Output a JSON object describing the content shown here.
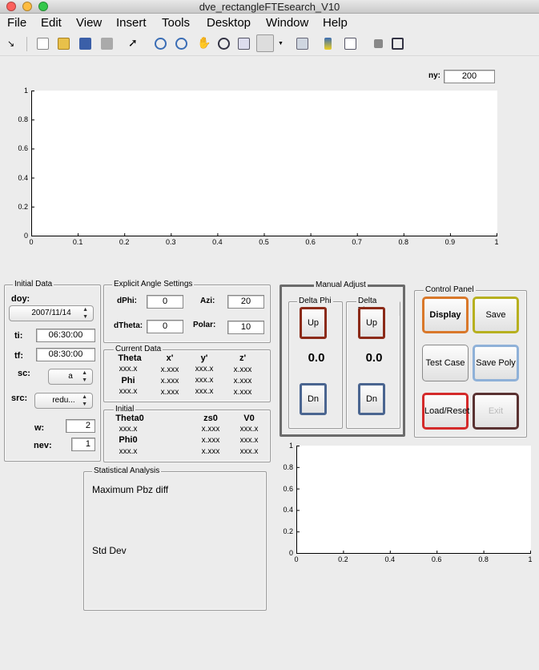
{
  "window": {
    "title": "dve_rectangleFTEsearch_V10"
  },
  "menu": [
    "File",
    "Edit",
    "View",
    "Insert",
    "Tools",
    "Desktop",
    "Window",
    "Help"
  ],
  "toolbar_icons": [
    "arrow-icon",
    "new-file-icon",
    "open-folder-icon",
    "save-icon",
    "print-icon",
    "pointer-icon",
    "zoom-in-icon",
    "zoom-out-icon",
    "pan-icon",
    "rotate-icon",
    "data-cursor-icon",
    "brush-icon",
    "dropdown-arrow-icon",
    "link-plot-icon",
    "colorbar-icon",
    "legend-icon",
    "hide-tools-icon",
    "show-tools-icon"
  ],
  "ny": {
    "label": "ny:",
    "value": "200"
  },
  "main_plot": {
    "x_ticks": [
      "0",
      "0.1",
      "0.2",
      "0.3",
      "0.4",
      "0.5",
      "0.6",
      "0.7",
      "0.8",
      "0.9",
      "1"
    ],
    "y_ticks": [
      "0",
      "0.2",
      "0.4",
      "0.6",
      "0.8",
      "1"
    ]
  },
  "initial_data": {
    "title": "Initial Data",
    "doy_label": "doy:",
    "doy_value": "2007/11/14",
    "ti_label": "ti:",
    "ti_value": "06:30:00",
    "tf_label": "tf:",
    "tf_value": "08:30:00",
    "sc_label": "sc:",
    "sc_value": "a",
    "src_label": "src:",
    "src_value": "redu...",
    "w_label": "w:",
    "w_value": "2",
    "nev_label": "nev:",
    "nev_value": "1"
  },
  "explicit": {
    "title": "Explicit Angle Settings",
    "dphi_label": "dPhi:",
    "dphi_value": "0",
    "azi_label": "Azi:",
    "azi_value": "20",
    "dtheta_label": "dTheta:",
    "dtheta_value": "0",
    "polar_label": "Polar:",
    "polar_value": "10"
  },
  "current": {
    "title": "Current Data",
    "headers": [
      "Theta",
      "x'",
      "y'",
      "z'"
    ],
    "row1": [
      "xxx.x",
      "x.xxx",
      "xxx.x",
      "x.xxx"
    ],
    "phi_label": "Phi",
    "row2": [
      "x.xxx",
      "xxx.x",
      "x.xxx"
    ],
    "row3": [
      "xxx.x",
      "x.xxx",
      "xxx.x",
      "x.xxx"
    ]
  },
  "initial": {
    "title": "Initial",
    "headers": [
      "Theta0",
      "zs0",
      "V0"
    ],
    "row1": [
      "xxx.x",
      "x.xxx",
      "xxx.x"
    ],
    "phi_label": "Phi0",
    "row2": [
      "x.xxx",
      "xxx.x"
    ],
    "row3": [
      "xxx.x",
      "x.xxx",
      "xxx.x"
    ]
  },
  "manual": {
    "title": "Manual Adjust",
    "delta_phi": {
      "title": "Delta Phi",
      "up": "Up",
      "value": "0.0",
      "dn": "Dn"
    },
    "delta_theta": {
      "title": "Delta Theta",
      "up": "Up",
      "value": "0.0",
      "dn": "Dn"
    }
  },
  "control": {
    "title": "Control Panel",
    "display": "Display",
    "save": "Save",
    "test_case": "Test Case",
    "save_poly": "Save Poly",
    "load_reset": "Load/Reset",
    "exit": "Exit"
  },
  "stats": {
    "title": "Statistical Analysis",
    "max_label": "Maximum Pbz diff",
    "std_label": "Std Dev"
  },
  "small_plot": {
    "x_ticks": [
      "0",
      "0.2",
      "0.4",
      "0.6",
      "0.8",
      "1"
    ],
    "y_ticks": [
      "0",
      "0.2",
      "0.4",
      "0.6",
      "0.8",
      "1"
    ]
  },
  "colors": {
    "display_border": "#d9782a",
    "save_border": "#b7b01f",
    "test_border": "#8a8a8a",
    "savepoly_border": "#8fb1d8",
    "load_border": "#d42a2a",
    "exit_border": "#5a3232",
    "up_border": "#8b2a18",
    "dn_border": "#4a6590"
  }
}
